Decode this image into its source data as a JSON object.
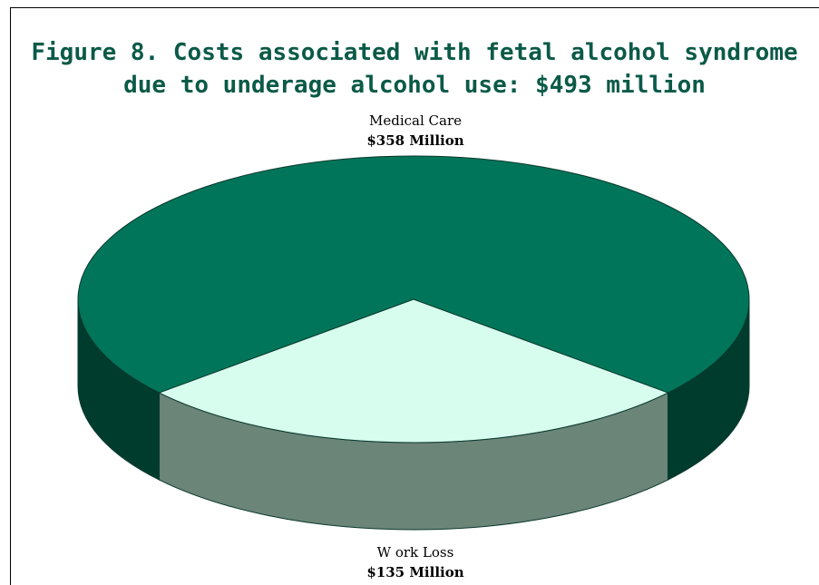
{
  "chart_data": {
    "type": "pie",
    "title_lines": [
      "Figure 8. Costs associated with fetal alcohol syndrome",
      "due to underage alcohol use: $493 million"
    ],
    "slices": [
      {
        "name": "Medical Care",
        "label": "$358 Million",
        "value": 358,
        "top_color": "#00755a",
        "side_color": "#003c2e"
      },
      {
        "name": "W ork Loss",
        "label": "$135 Million",
        "value": 135,
        "top_color": "#d6fdee",
        "side_color": "#6b8578"
      }
    ],
    "total": 493,
    "style": "3d"
  }
}
